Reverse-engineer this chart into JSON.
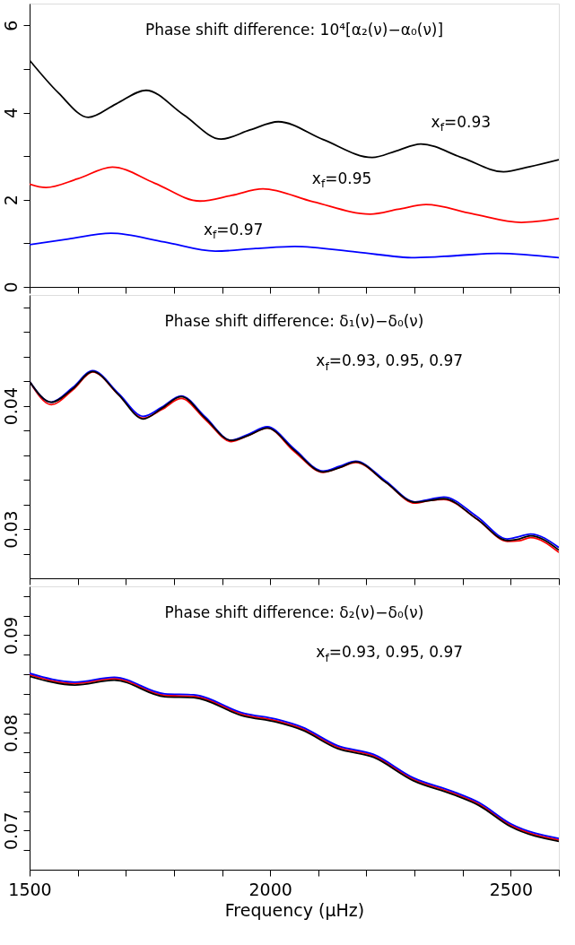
{
  "chart_data": [
    {
      "type": "line",
      "title": "Phase shift difference: 10⁴[α₂(ν)−α₀(ν)]",
      "xlim": [
        1500,
        2600
      ],
      "ylim": [
        0,
        6.5
      ],
      "xticks": [
        1500,
        {
          "value": 1600,
          "label": null
        },
        {
          "value": 1700,
          "label": null
        },
        {
          "value": 1800,
          "label": null
        },
        {
          "value": 1900,
          "label": null
        },
        2000,
        {
          "value": 2100,
          "label": null
        },
        {
          "value": 2200,
          "label": null
        },
        {
          "value": 2300,
          "label": null
        },
        {
          "value": 2400,
          "label": null
        },
        2500,
        {
          "value": 2600,
          "label": null
        }
      ],
      "yticks": [
        0,
        {
          "value": 1,
          "label": null
        },
        2,
        {
          "value": 3,
          "label": null
        },
        4,
        {
          "value": 5,
          "label": null
        },
        6
      ],
      "tick_labels": "y",
      "series": [
        {
          "color": "#ff0000",
          "x": [
            1500,
            1534,
            1600,
            1672,
            1760,
            1854,
            1920,
            1985,
            2090,
            2208,
            2266,
            2324,
            2420,
            2522,
            2600
          ],
          "values": [
            2.36,
            2.28,
            2.48,
            2.75,
            2.38,
            1.97,
            2.1,
            2.25,
            1.95,
            1.67,
            1.78,
            1.89,
            1.68,
            1.48,
            1.57
          ]
        },
        {
          "color": "#0000ff",
          "x": [
            1500,
            1580,
            1669,
            1780,
            1886,
            1970,
            2051,
            2180,
            2301,
            2390,
            2474,
            2600
          ],
          "values": [
            0.97,
            1.1,
            1.23,
            1.03,
            0.82,
            0.88,
            0.93,
            0.8,
            0.67,
            0.72,
            0.77,
            0.67
          ]
        },
        {
          "color": "#000000",
          "x": [
            1500,
            1560,
            1622,
            1680,
            1742,
            1820,
            1898,
            1958,
            2017,
            2110,
            2212,
            2262,
            2313,
            2400,
            2485,
            2540,
            2600
          ],
          "values": [
            5.2,
            4.45,
            3.89,
            4.2,
            4.51,
            3.95,
            3.39,
            3.6,
            3.79,
            3.38,
            2.97,
            3.12,
            3.28,
            2.96,
            2.64,
            2.76,
            2.92
          ]
        }
      ],
      "annotations": [
        "x$_{f}$=0.93",
        "x$_{f}$=0.95",
        "x$_{f}$=0.97"
      ]
    },
    {
      "type": "line",
      "title": "Phase shift difference: δ₁(ν)−δ₀(ν)",
      "xlim": [
        1500,
        2600
      ],
      "ylim": [
        0.026,
        0.049
      ],
      "xticks": [
        1500,
        {
          "value": 1600,
          "label": null
        },
        {
          "value": 1700,
          "label": null
        },
        {
          "value": 1800,
          "label": null
        },
        {
          "value": 1900,
          "label": null
        },
        2000,
        {
          "value": 2100,
          "label": null
        },
        {
          "value": 2200,
          "label": null
        },
        {
          "value": 2300,
          "label": null
        },
        {
          "value": 2400,
          "label": null
        },
        2500,
        {
          "value": 2600,
          "label": null
        }
      ],
      "yticks": [
        {
          "value": 0.028,
          "label": null
        },
        0.03,
        {
          "value": 0.032,
          "label": null
        },
        {
          "value": 0.034,
          "label": null
        },
        {
          "value": 0.036,
          "label": null
        },
        {
          "value": 0.038,
          "label": null
        },
        0.04,
        {
          "value": 0.042,
          "label": null
        },
        {
          "value": 0.044,
          "label": null
        },
        {
          "value": 0.046,
          "label": null
        },
        {
          "value": 0.048,
          "label": null
        }
      ],
      "tick_labels": "y",
      "series": [
        {
          "color": "#ff0000",
          "x": [
            1500,
            1545,
            1590,
            1631,
            1685,
            1736,
            1775,
            1815,
            1865,
            1919,
            1955,
            1994,
            2050,
            2110,
            2145,
            2178,
            2240,
            2301,
            2330,
            2361,
            2430,
            2493,
            2518,
            2541,
            2600
          ],
          "values": [
            0.04197,
            0.0401,
            0.0413,
            0.04275,
            0.0409,
            0.039,
            0.0397,
            0.0406,
            0.0389,
            0.0371,
            0.0376,
            0.0382,
            0.0363,
            0.0346,
            0.035,
            0.0354,
            0.0338,
            0.0321,
            0.0323,
            0.0324,
            0.0308,
            0.029,
            0.02905,
            0.0293,
            0.0281
          ]
        },
        {
          "color": "#0000ff",
          "x": [
            1500,
            1545,
            1590,
            1631,
            1685,
            1736,
            1775,
            1815,
            1865,
            1919,
            1955,
            1994,
            2050,
            2110,
            2145,
            2178,
            2240,
            2301,
            2330,
            2361,
            2430,
            2493,
            2518,
            2541,
            2600
          ],
          "values": [
            0.04197,
            0.0403,
            0.0415,
            0.04285,
            0.041,
            0.03915,
            0.0399,
            0.0408,
            0.0391,
            0.0372,
            0.0377,
            0.0383,
            0.0365,
            0.0347,
            0.0351,
            0.0355,
            0.0339,
            0.0322,
            0.0324,
            0.0326,
            0.031,
            0.0292,
            0.0294,
            0.0296,
            0.0285
          ]
        },
        {
          "color": "#000000",
          "x": [
            1500,
            1545,
            1590,
            1631,
            1685,
            1736,
            1775,
            1815,
            1865,
            1919,
            1955,
            1994,
            2050,
            2110,
            2145,
            2178,
            2240,
            2301,
            2330,
            2361,
            2430,
            2493,
            2518,
            2541,
            2600
          ],
          "values": [
            0.04197,
            0.04029,
            0.0414,
            0.04278,
            0.0409,
            0.03893,
            0.0398,
            0.04075,
            0.039,
            0.03719,
            0.0376,
            0.0382,
            0.0364,
            0.03464,
            0.035,
            0.03545,
            0.0338,
            0.03217,
            0.0323,
            0.03246,
            0.0308,
            0.02907,
            0.0292,
            0.02945,
            0.02829
          ]
        }
      ],
      "annotations": [
        "x$_{f}$=0.93, 0.95, 0.97"
      ]
    },
    {
      "type": "line",
      "title": "Phase shift difference: δ₂(ν)−δ₀(ν)",
      "xlabel": "Frequency (μHz)",
      "xlim": [
        1500,
        2600
      ],
      "ylim": [
        0.066,
        0.095
      ],
      "xticks": [
        1500,
        {
          "value": 1600,
          "label": null
        },
        {
          "value": 1700,
          "label": null
        },
        {
          "value": 1800,
          "label": null
        },
        {
          "value": 1900,
          "label": null
        },
        2000,
        {
          "value": 2100,
          "label": null
        },
        {
          "value": 2200,
          "label": null
        },
        {
          "value": 2300,
          "label": null
        },
        {
          "value": 2400,
          "label": null
        },
        2500,
        {
          "value": 2600,
          "label": null
        }
      ],
      "yticks": [
        {
          "value": 0.068,
          "label": null
        },
        0.07,
        {
          "value": 0.072,
          "label": null
        },
        {
          "value": 0.074,
          "label": null
        },
        {
          "value": 0.076,
          "label": null
        },
        {
          "value": 0.078,
          "label": null
        },
        0.08,
        {
          "value": 0.082,
          "label": null
        },
        {
          "value": 0.084,
          "label": null
        },
        {
          "value": 0.086,
          "label": null
        },
        {
          "value": 0.088,
          "label": null
        },
        0.09,
        {
          "value": 0.092,
          "label": null
        },
        {
          "value": 0.094,
          "label": null
        }
      ],
      "series": [
        {
          "color": "#ff0000",
          "x": [
            1500,
            1594,
            1676,
            1781,
            1841,
            1946,
            2013,
            2066,
            2140,
            2215,
            2298,
            2380,
            2433,
            2500,
            2600
          ],
          "values": [
            0.08595,
            0.08505,
            0.08555,
            0.08385,
            0.08375,
            0.08185,
            0.08125,
            0.08045,
            0.07855,
            0.07765,
            0.07525,
            0.07385,
            0.07275,
            0.07055,
            0.06905
          ]
        },
        {
          "color": "#0000ff",
          "x": [
            1500,
            1594,
            1676,
            1781,
            1841,
            1946,
            2013,
            2066,
            2140,
            2215,
            2298,
            2380,
            2433,
            2500,
            2600
          ],
          "values": [
            0.0861,
            0.0852,
            0.0857,
            0.084,
            0.0839,
            0.082,
            0.0814,
            0.0806,
            0.0787,
            0.0778,
            0.0754,
            0.074,
            0.0729,
            0.0707,
            0.0692
          ]
        },
        {
          "color": "#000000",
          "x": [
            1500,
            1594,
            1676,
            1781,
            1841,
            1946,
            2013,
            2066,
            2140,
            2215,
            2298,
            2380,
            2433,
            2500,
            2600
          ],
          "values": [
            0.0858,
            0.0849,
            0.0854,
            0.0837,
            0.0836,
            0.0817,
            0.0811,
            0.0803,
            0.0784,
            0.0775,
            0.0751,
            0.0737,
            0.0726,
            0.0704,
            0.0689
          ]
        }
      ],
      "annotations": [
        "x$_{f}$=0.93, 0.95, 0.97"
      ]
    }
  ]
}
